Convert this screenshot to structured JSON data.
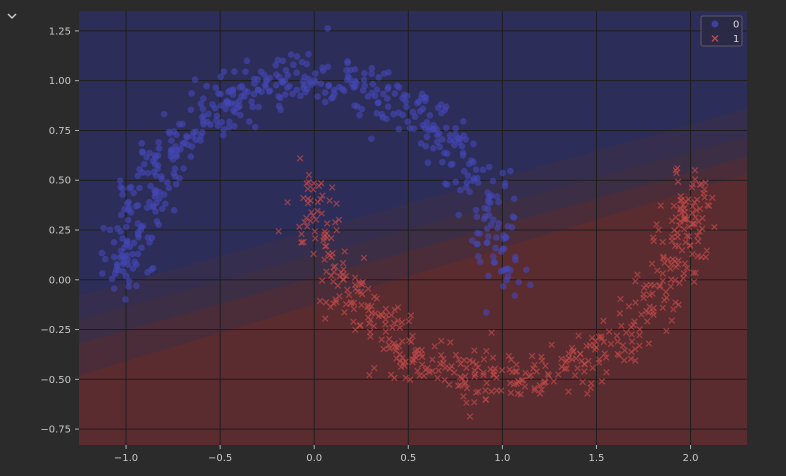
{
  "ui": {
    "collapse_icon": "chevron-down-icon"
  },
  "colors": {
    "page_bg": "#2b2b2b",
    "region_class0": "#2d2d5a",
    "region_class1": "#5a2c30",
    "class0": "#4448b8",
    "class1": "#c04848",
    "grid": "#1e1e1e"
  },
  "chart_data": {
    "type": "scatter",
    "title": "",
    "xlabel": "",
    "ylabel": "",
    "xlim": [
      -1.25,
      2.3
    ],
    "ylim": [
      -0.83,
      1.35
    ],
    "x_ticks": [
      -1.0,
      -0.5,
      0.0,
      0.5,
      1.0,
      1.5,
      2.0
    ],
    "x_tick_labels": [
      "−1.0",
      "−0.5",
      "0.0",
      "0.5",
      "1.0",
      "1.5",
      "2.0"
    ],
    "y_ticks": [
      -0.75,
      -0.5,
      -0.25,
      0.0,
      0.25,
      0.5,
      0.75,
      1.0,
      1.25
    ],
    "y_tick_labels": [
      "−0.75",
      "−0.50",
      "−0.25",
      "0.00",
      "0.25",
      "0.50",
      "0.75",
      "1.00",
      "1.25"
    ],
    "grid": true,
    "legend_position": "top-right",
    "decision_boundary": {
      "description": "linear classifier regions",
      "levels": [
        {
          "p0": [
            -1.25,
            -0.48
          ],
          "p1": [
            2.3,
            0.53
          ],
          "fill": "#5a2c30"
        },
        {
          "p0": [
            -1.25,
            -0.32
          ],
          "p1": [
            2.3,
            0.62
          ],
          "fill": "#4b2d3a"
        },
        {
          "p0": [
            -1.25,
            -0.2
          ],
          "p1": [
            2.3,
            0.72
          ],
          "fill": "#3c2e44"
        },
        {
          "p0": [
            -1.25,
            -0.08
          ],
          "p1": [
            2.3,
            0.86
          ],
          "fill": "#352e4e"
        }
      ]
    },
    "series": [
      {
        "name": "0",
        "marker": "circle",
        "color": "#4448b8",
        "shape": "upper-moon",
        "center": [
          0.0,
          0.0
        ],
        "radius": 1.0,
        "n_points": 500,
        "noise": 0.07
      },
      {
        "name": "1",
        "marker": "x",
        "color": "#c04848",
        "shape": "lower-moon",
        "center": [
          1.0,
          0.5
        ],
        "radius": 1.0,
        "n_points": 500,
        "noise": 0.07
      }
    ]
  }
}
